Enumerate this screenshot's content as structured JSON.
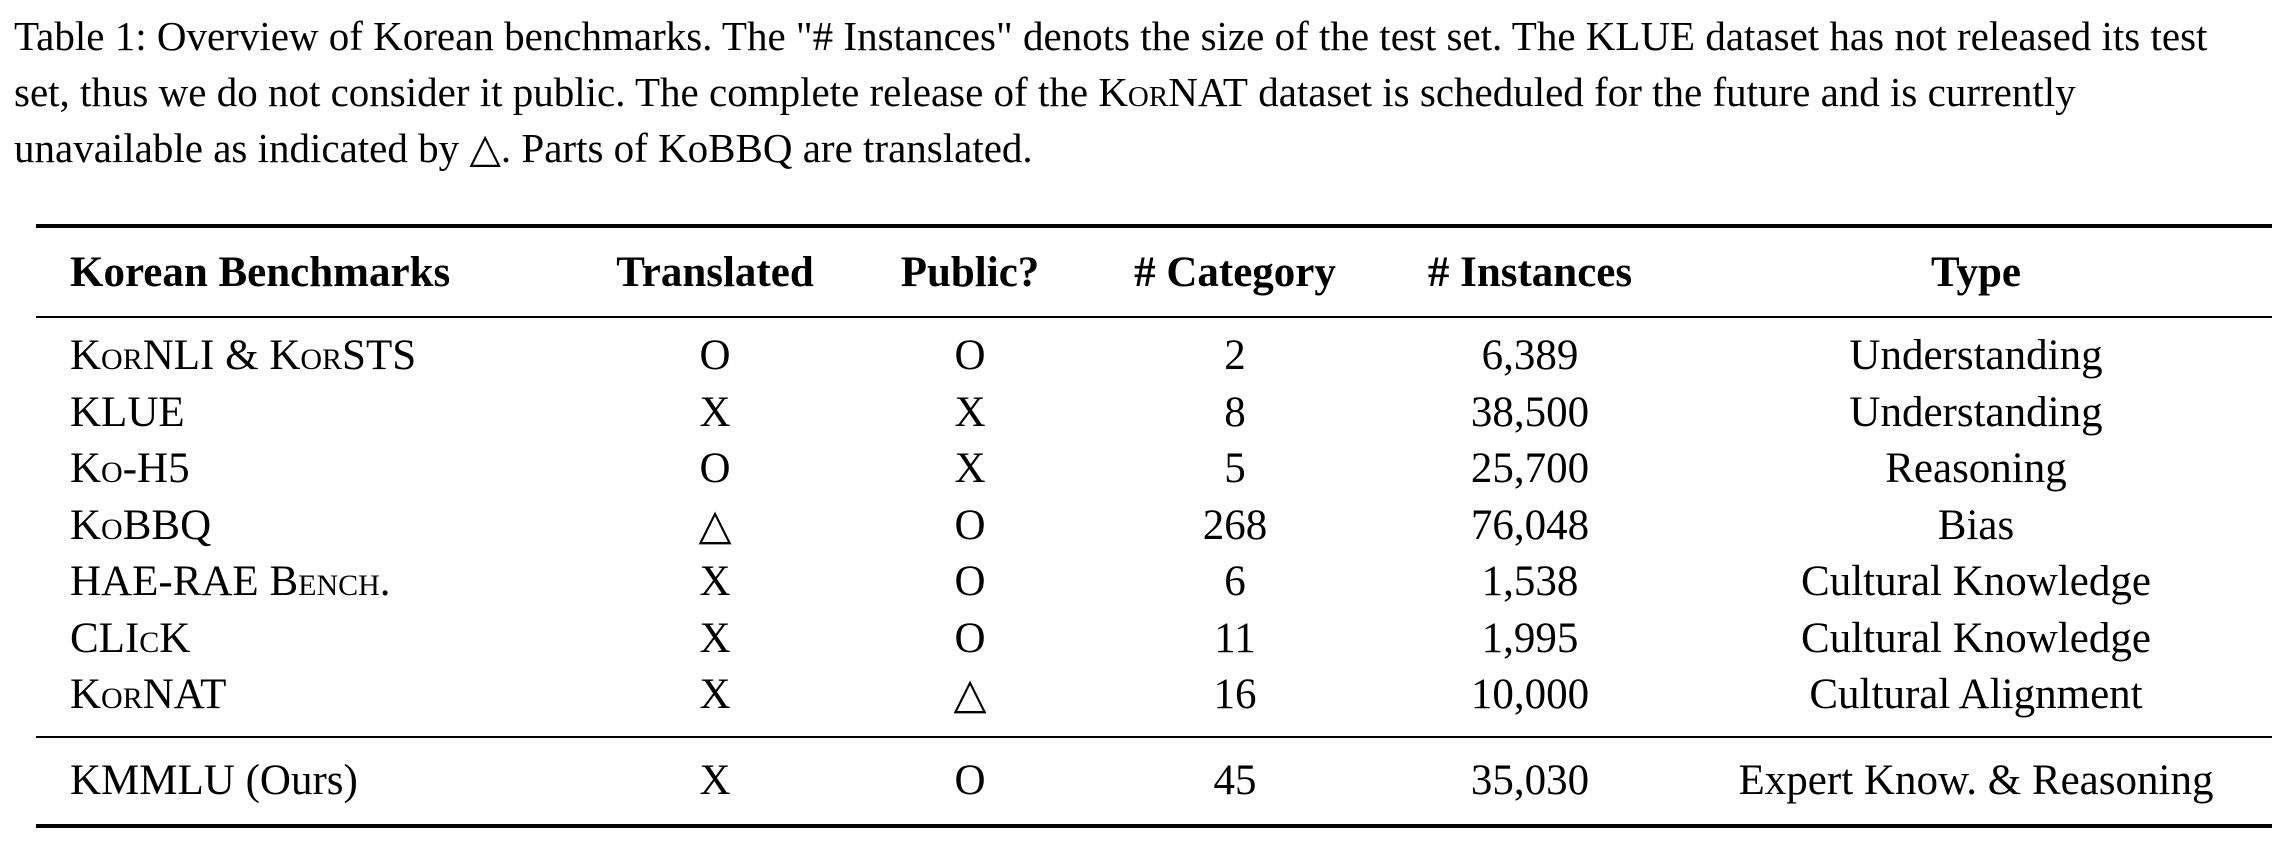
{
  "caption": {
    "label": "Table 1:",
    "part1": " Overview of Korean benchmarks. The \"# Instances\" denots the size of the test set. The KLUE dataset has not released its test set, thus we do not consider it public. The complete release of the ",
    "kornat": "KorNAT",
    "part2": " dataset is scheduled for the future and is currently unavailable as indicated by △. Parts of KoBBQ are translated."
  },
  "table": {
    "headers": [
      "Korean Benchmarks",
      "Translated",
      "Public?",
      "# Category",
      "# Instances",
      "Type"
    ],
    "rows": [
      {
        "name": "KorNLI & KorSTS",
        "translated": "O",
        "public": "O",
        "category": "2",
        "instances": "6,389",
        "type": "Understanding"
      },
      {
        "name": "KLUE",
        "translated": "X",
        "public": "X",
        "category": "8",
        "instances": "38,500",
        "type": "Understanding"
      },
      {
        "name": "Ko-H5",
        "translated": "O",
        "public": "X",
        "category": "5",
        "instances": "25,700",
        "type": "Reasoning"
      },
      {
        "name": "KoBBQ",
        "translated": "△",
        "public": "O",
        "category": "268",
        "instances": "76,048",
        "type": "Bias"
      },
      {
        "name": "HAE-RAE Bench.",
        "translated": "X",
        "public": "O",
        "category": "6",
        "instances": "1,538",
        "type": "Cultural Knowledge"
      },
      {
        "name": "CLIcK",
        "translated": "X",
        "public": "O",
        "category": "11",
        "instances": "1,995",
        "type": "Cultural Knowledge"
      },
      {
        "name": "KorNAT",
        "translated": "X",
        "public": "△",
        "category": "16",
        "instances": "10,000",
        "type": "Cultural Alignment"
      }
    ],
    "ours": {
      "name": "KMMLU (Ours)",
      "translated": "X",
      "public": "O",
      "category": "45",
      "instances": "35,030",
      "type": "Expert Know. & Reasoning"
    }
  }
}
